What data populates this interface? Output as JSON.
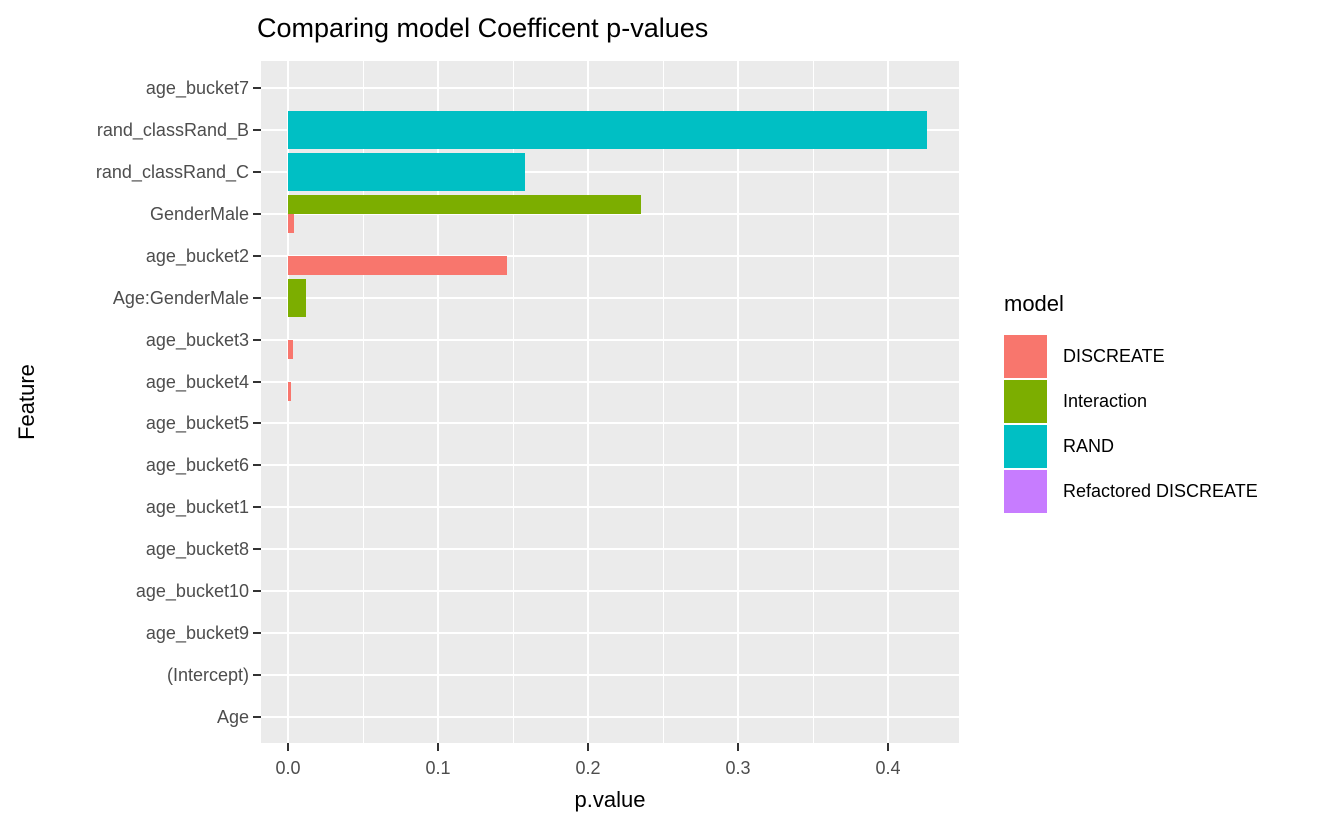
{
  "chart_data": {
    "type": "bar",
    "orientation": "horizontal",
    "position": "dodge",
    "title": "Comparing model Coefficent p-values",
    "xlabel": "p.value",
    "ylabel": "Feature",
    "categories": [
      "age_bucket7",
      "rand_classRand_B",
      "rand_classRand_C",
      "GenderMale",
      "age_bucket2",
      "Age:GenderMale",
      "age_bucket3",
      "age_bucket4",
      "age_bucket5",
      "age_bucket6",
      "age_bucket1",
      "age_bucket8",
      "age_bucket10",
      "age_bucket9",
      "(Intercept)",
      "Age"
    ],
    "x_ticks": {
      "values": [
        0,
        0.1,
        0.2,
        0.3,
        0.4
      ],
      "labels": [
        "0.0",
        "0.1",
        "0.2",
        "0.3",
        "0.4"
      ]
    },
    "x_minor": [
      0.05,
      0.15,
      0.25,
      0.35
    ],
    "xlim": [
      -0.018,
      0.447
    ],
    "grid": true,
    "legend": {
      "position": "right",
      "title": "model",
      "entries": [
        {
          "label": "DISCREATE",
          "color": "#F8766D"
        },
        {
          "label": "Interaction",
          "color": "#7CAE00"
        },
        {
          "label": "RAND",
          "color": "#00BFC4"
        },
        {
          "label": "Refactored DISCREATE",
          "color": "#C77CFF"
        }
      ]
    },
    "bars": [
      {
        "feature": "rand_classRand_B",
        "model": "RAND",
        "value": 0.426,
        "slot": "full"
      },
      {
        "feature": "rand_classRand_C",
        "model": "RAND",
        "value": 0.158,
        "slot": "full"
      },
      {
        "feature": "GenderMale",
        "model": "Interaction",
        "value": 0.235,
        "slot": "top"
      },
      {
        "feature": "GenderMale",
        "model": "DISCREATE",
        "value": 0.004,
        "slot": "bottom"
      },
      {
        "feature": "age_bucket2",
        "model": "DISCREATE",
        "value": 0.146,
        "slot": "bottom"
      },
      {
        "feature": "Age:GenderMale",
        "model": "Interaction",
        "value": 0.012,
        "slot": "full"
      },
      {
        "feature": "age_bucket3",
        "model": "DISCREATE",
        "value": 0.003,
        "slot": "bottom"
      },
      {
        "feature": "age_bucket4",
        "model": "DISCREATE",
        "value": 0.0017,
        "slot": "bottom"
      }
    ],
    "colors": {
      "panel_background": "#EBEBEB",
      "gridline": "#FFFFFF",
      "tick": "#333333",
      "axis_text": "#4D4D4D",
      "title_text": "#000000"
    }
  }
}
